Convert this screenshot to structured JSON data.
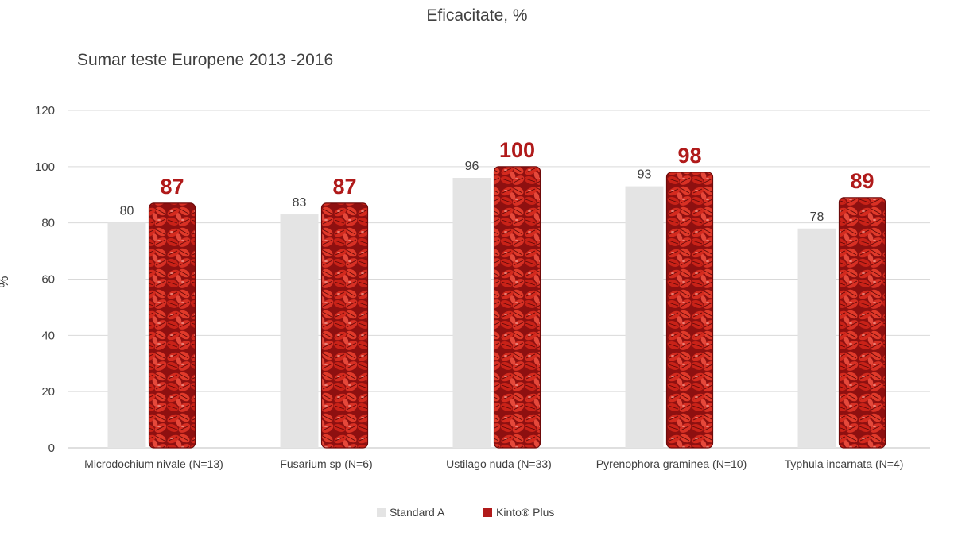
{
  "chart_data": {
    "type": "bar",
    "title": "Eficacitate, %",
    "subtitle": "Sumar teste Europene 2013 -2016",
    "ylabel": "%",
    "xlabel": "",
    "ylim": [
      0,
      120
    ],
    "yticks": [
      0,
      20,
      40,
      60,
      80,
      100,
      120
    ],
    "grid": true,
    "legend_position": "bottom",
    "categories": [
      "Microdochium nivale (N=13)",
      "Fusarium sp (N=6)",
      "Ustilago nuda (N=33)",
      "Pyrenophora graminea (N=10)",
      "Typhula incarnata (N=4)"
    ],
    "series": [
      {
        "name": "Standard A",
        "values": [
          80,
          83,
          96,
          93,
          78
        ],
        "color": "#e4e4e4"
      },
      {
        "name": "Kinto® Plus",
        "values": [
          87,
          87,
          100,
          98,
          89
        ],
        "color": "#b01a1a"
      }
    ]
  }
}
